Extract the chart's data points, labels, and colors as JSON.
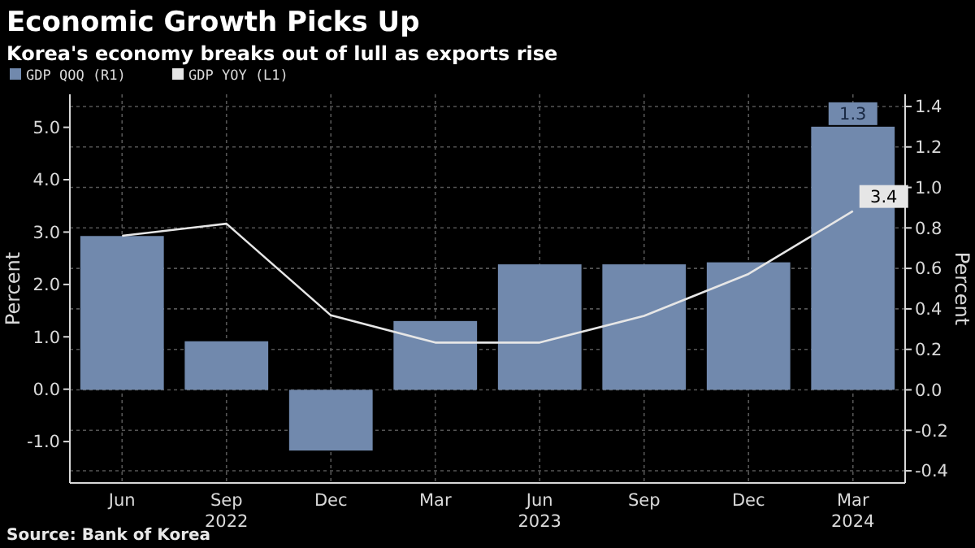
{
  "chart_data": {
    "type": "bar",
    "title": "Economic Growth Picks Up",
    "subtitle": "Korea's economy breaks out of lull as exports rise",
    "categories": [
      "Jun",
      "Sep 2022",
      "Dec",
      "Mar",
      "Jun 2023",
      "Sep",
      "Dec",
      "Mar 2024"
    ],
    "series": [
      {
        "name": "GDP QOQ (R1)",
        "axis": "y2",
        "color": "#7189ad",
        "values": [
          0.76,
          0.24,
          -0.3,
          0.34,
          0.62,
          0.62,
          0.63,
          1.3
        ],
        "value_labels": [
          null,
          null,
          null,
          null,
          null,
          null,
          null,
          "1.3"
        ]
      },
      {
        "name": "GDP YOY (L1)",
        "type": "line",
        "axis": "y",
        "color": "#e6e6e6",
        "values": [
          2.93,
          3.16,
          1.41,
          0.89,
          0.89,
          1.4,
          2.2,
          3.4
        ],
        "value_labels": [
          null,
          null,
          null,
          null,
          null,
          null,
          null,
          "3.4"
        ]
      }
    ],
    "ylabel": "Percent",
    "y2label": "Percent",
    "ylim": [
      -1.79,
      5.63
    ],
    "yticks": [
      {
        "value": -1,
        "label": "-1.0"
      },
      {
        "value": 0,
        "label": "0.0"
      },
      {
        "value": 1,
        "label": "1.0"
      },
      {
        "value": 2,
        "label": "2.0"
      },
      {
        "value": 3,
        "label": "3.0"
      },
      {
        "value": 4,
        "label": "4.0"
      },
      {
        "value": 5,
        "label": "5.0"
      }
    ],
    "y2lim": [
      -0.46,
      1.46
    ],
    "y2ticks": [
      -0.4,
      -0.2,
      {
        "value": 0,
        "label": "0.0"
      },
      0.2,
      0.4,
      0.6,
      0.8,
      {
        "value": 1,
        "label": "1.0"
      },
      1.2,
      1.4
    ],
    "grid": true,
    "legend": "top left",
    "annotations": [
      "Source: Bank of Korea"
    ]
  }
}
